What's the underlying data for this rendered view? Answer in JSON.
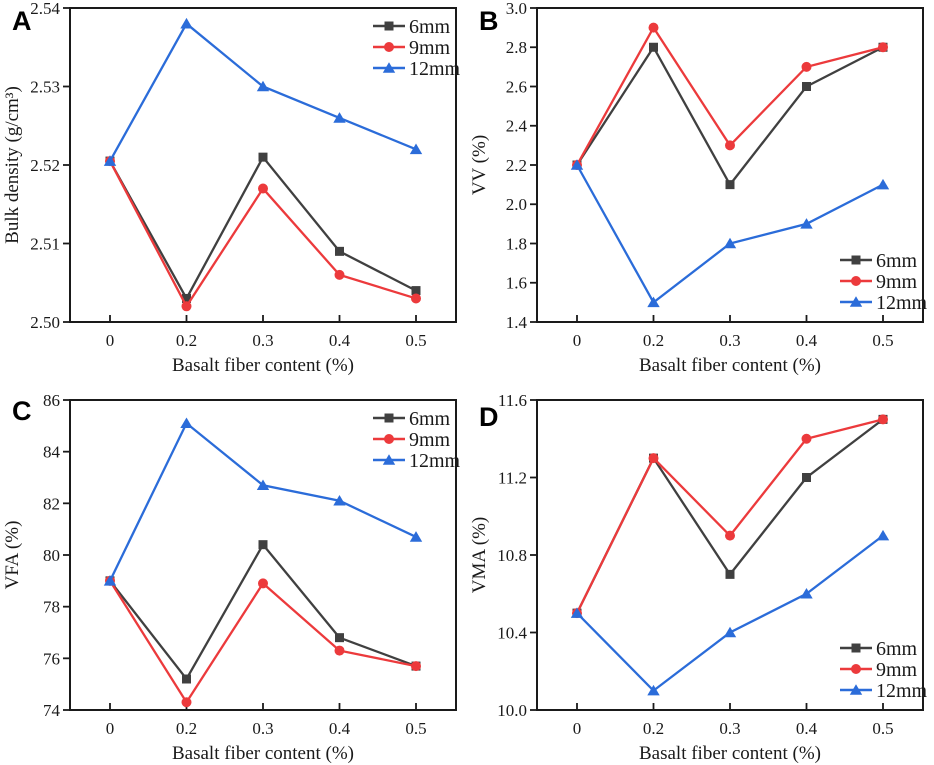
{
  "figure": {
    "panel_letters": [
      "A",
      "B",
      "C",
      "D"
    ],
    "axis_color": "#1a1a1a",
    "background": "#ffffff"
  },
  "chart_data": [
    {
      "type": "line",
      "panel_label": "A",
      "title": "",
      "xlabel": "Basalt fiber content (%)",
      "ylabel": "Bulk density (g/cm³)",
      "categories": [
        "0",
        "0.2",
        "0.3",
        "0.4",
        "0.5"
      ],
      "ylim": [
        2.5,
        2.54
      ],
      "ytick_step": 0.01,
      "ytick_decimals": 2,
      "grid": false,
      "legend_position": "top-right",
      "series": [
        {
          "name": "6mm",
          "marker": "square",
          "color": "#404040",
          "values": [
            2.5205,
            2.503,
            2.521,
            2.509,
            2.504
          ]
        },
        {
          "name": "9mm",
          "marker": "circle",
          "color": "#ec3a3c",
          "values": [
            2.5205,
            2.502,
            2.517,
            2.506,
            2.503
          ]
        },
        {
          "name": "12mm",
          "marker": "triangle",
          "color": "#2b6cd9",
          "values": [
            2.5205,
            2.538,
            2.53,
            2.526,
            2.522
          ]
        }
      ]
    },
    {
      "type": "line",
      "panel_label": "B",
      "title": "",
      "xlabel": "Basalt fiber content (%)",
      "ylabel": "VV (%)",
      "categories": [
        "0",
        "0.2",
        "0.3",
        "0.4",
        "0.5"
      ],
      "ylim": [
        1.4,
        3.0
      ],
      "ytick_step": 0.2,
      "ytick_decimals": 1,
      "grid": false,
      "legend_position": "bottom-right",
      "series": [
        {
          "name": "6mm",
          "marker": "square",
          "color": "#404040",
          "values": [
            2.2,
            2.8,
            2.1,
            2.6,
            2.8
          ]
        },
        {
          "name": "9mm",
          "marker": "circle",
          "color": "#ec3a3c",
          "values": [
            2.2,
            2.9,
            2.3,
            2.7,
            2.8
          ]
        },
        {
          "name": "12mm",
          "marker": "triangle",
          "color": "#2b6cd9",
          "values": [
            2.2,
            1.5,
            1.8,
            1.9,
            2.1
          ]
        }
      ]
    },
    {
      "type": "line",
      "panel_label": "C",
      "title": "",
      "xlabel": "Basalt fiber content (%)",
      "ylabel": "VFA (%)",
      "categories": [
        "0",
        "0.2",
        "0.3",
        "0.4",
        "0.5"
      ],
      "ylim": [
        74,
        86
      ],
      "ytick_step": 2,
      "ytick_decimals": 0,
      "grid": false,
      "legend_position": "top-right",
      "series": [
        {
          "name": "6mm",
          "marker": "square",
          "color": "#404040",
          "values": [
            79.0,
            75.2,
            80.4,
            76.8,
            75.7
          ]
        },
        {
          "name": "9mm",
          "marker": "circle",
          "color": "#ec3a3c",
          "values": [
            79.0,
            74.3,
            78.9,
            76.3,
            75.7
          ]
        },
        {
          "name": "12mm",
          "marker": "triangle",
          "color": "#2b6cd9",
          "values": [
            79.0,
            85.1,
            82.7,
            82.1,
            80.7
          ]
        }
      ]
    },
    {
      "type": "line",
      "panel_label": "D",
      "title": "",
      "xlabel": "Basalt fiber content (%)",
      "ylabel": "VMA (%)",
      "categories": [
        "0",
        "0.2",
        "0.3",
        "0.4",
        "0.5"
      ],
      "ylim": [
        10.0,
        11.6
      ],
      "ytick_step": 0.4,
      "ytick_decimals": 1,
      "grid": false,
      "legend_position": "bottom-right",
      "series": [
        {
          "name": "6mm",
          "marker": "square",
          "color": "#404040",
          "values": [
            10.5,
            11.3,
            10.7,
            11.2,
            11.5
          ]
        },
        {
          "name": "9mm",
          "marker": "circle",
          "color": "#ec3a3c",
          "values": [
            10.5,
            11.3,
            10.9,
            11.4,
            11.5
          ]
        },
        {
          "name": "12mm",
          "marker": "triangle",
          "color": "#2b6cd9",
          "values": [
            10.5,
            10.1,
            10.4,
            10.6,
            10.9
          ]
        }
      ]
    }
  ]
}
